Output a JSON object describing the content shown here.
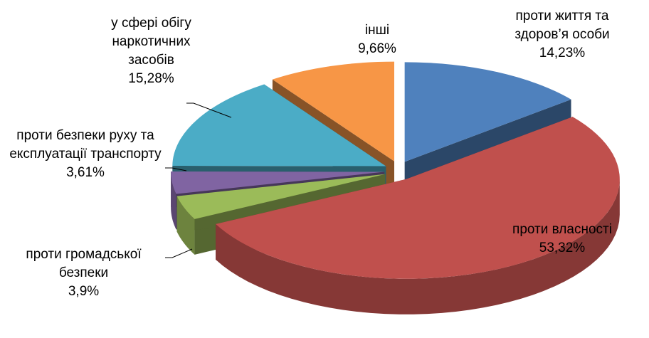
{
  "chart_data": {
    "type": "pie",
    "categories": [
      "проти життя та здоров’я особи",
      "проти власності",
      "проти громадської безпеки",
      "проти безпеки руху та експлуатації транспорту",
      "у сфері обігу наркотичних засобів",
      "інші"
    ],
    "values": [
      14.23,
      53.32,
      3.9,
      3.61,
      15.28,
      9.66
    ],
    "value_labels": [
      "14,23%",
      "53,32%",
      "3,9%",
      "3,61%",
      "15,28%",
      "9,66%"
    ],
    "colors": [
      "#4f81bd",
      "#c0504d",
      "#9bbb59",
      "#8064a2",
      "#4bacc6",
      "#f79646"
    ]
  }
}
